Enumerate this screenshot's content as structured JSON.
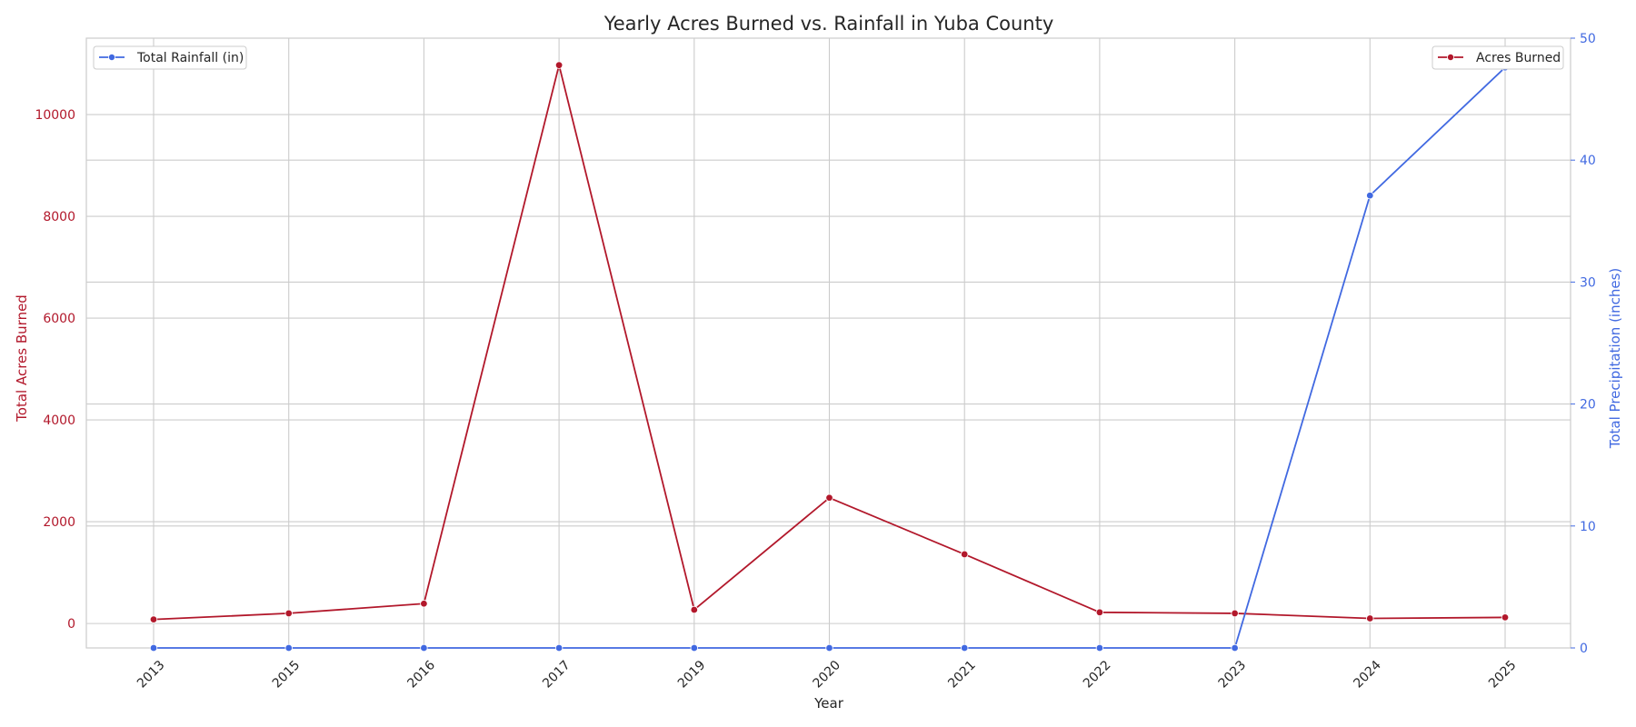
{
  "chart_data": {
    "type": "line",
    "title": "Yearly Acres Burned vs. Rainfall in Yuba County",
    "xlabel": "Year",
    "ylabel_left": "Total Acres Burned",
    "ylabel_right": "Total Precipitation (inches)",
    "categories": [
      "2013",
      "2015",
      "2016",
      "2017",
      "2019",
      "2020",
      "2021",
      "2022",
      "2023",
      "2024",
      "2025"
    ],
    "left_axis": {
      "ylim": [
        -480,
        11500
      ],
      "ticks": [
        0,
        2000,
        4000,
        6000,
        8000,
        10000
      ],
      "tick_labels": [
        "0",
        "2000",
        "4000",
        "6000",
        "8000",
        "10000"
      ]
    },
    "right_axis": {
      "ylim": [
        0,
        50
      ],
      "ticks": [
        0,
        10,
        20,
        30,
        40,
        50
      ],
      "tick_labels": [
        "0",
        "10",
        "20",
        "30",
        "40",
        "50"
      ]
    },
    "series": [
      {
        "name": "Acres Burned",
        "axis": "left",
        "color": "#b2182b",
        "values": [
          80,
          200,
          390,
          10970,
          270,
          2470,
          1360,
          220,
          200,
          100,
          120
        ]
      },
      {
        "name": "Total Rainfall (in)",
        "axis": "right",
        "color": "#4169e1",
        "values": [
          0,
          0,
          0,
          0,
          0,
          0,
          0,
          0,
          0,
          37.1,
          47.6
        ]
      }
    ],
    "legend": [
      {
        "placement": "upper-left",
        "label": "Total Rainfall (in)",
        "color": "#4169e1"
      },
      {
        "placement": "upper-right",
        "label": "Acres Burned",
        "color": "#b2182b"
      }
    ],
    "grid": true
  }
}
